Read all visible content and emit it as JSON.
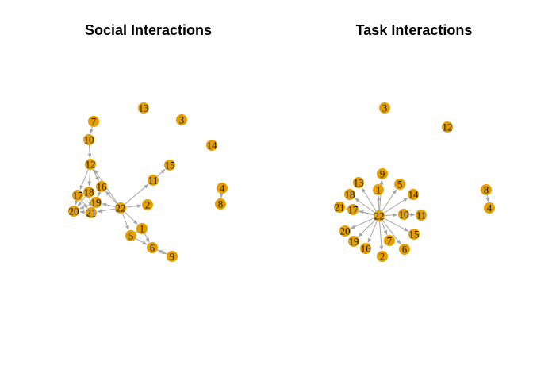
{
  "colors": {
    "node": "#E69F00",
    "edge": "#A6A6A6",
    "label": "#1a1a1a"
  },
  "graphs": [
    {
      "title": "Social Interactions",
      "nodes": [
        "1",
        "2",
        "3",
        "4",
        "5",
        "6",
        "7",
        "8",
        "9",
        "10",
        "11",
        "12",
        "13",
        "14",
        "15",
        "16",
        "17",
        "18",
        "19",
        "20",
        "21",
        "22"
      ],
      "edges": [
        [
          "22",
          "1"
        ],
        [
          "22",
          "2"
        ],
        [
          "22",
          "5"
        ],
        [
          "22",
          "11"
        ],
        [
          "22",
          "16"
        ],
        [
          "22",
          "19"
        ],
        [
          "22",
          "21"
        ],
        [
          "22",
          "12"
        ],
        [
          "1",
          "5"
        ],
        [
          "5",
          "1"
        ],
        [
          "1",
          "6"
        ],
        [
          "5",
          "6"
        ],
        [
          "6",
          "9"
        ],
        [
          "9",
          "6"
        ],
        [
          "11",
          "15"
        ],
        [
          "4",
          "8"
        ],
        [
          "7",
          "10"
        ],
        [
          "10",
          "12"
        ],
        [
          "12",
          "16"
        ],
        [
          "12",
          "18"
        ],
        [
          "12",
          "17"
        ],
        [
          "16",
          "19"
        ],
        [
          "16",
          "21"
        ],
        [
          "18",
          "20"
        ],
        [
          "18",
          "21"
        ],
        [
          "17",
          "20"
        ],
        [
          "19",
          "20"
        ],
        [
          "19",
          "21"
        ],
        [
          "21",
          "20"
        ],
        [
          "17",
          "21"
        ],
        [
          "18",
          "17"
        ],
        [
          "19",
          "18"
        ]
      ]
    },
    {
      "title": "Task Interactions",
      "nodes": [
        "1",
        "2",
        "3",
        "4",
        "5",
        "6",
        "7",
        "8",
        "9",
        "10",
        "11",
        "12",
        "13",
        "14",
        "15",
        "16",
        "17",
        "18",
        "19",
        "20",
        "21",
        "22"
      ],
      "edges": [
        [
          "22",
          "1"
        ],
        [
          "22",
          "2"
        ],
        [
          "22",
          "5"
        ],
        [
          "22",
          "6"
        ],
        [
          "22",
          "7"
        ],
        [
          "22",
          "9"
        ],
        [
          "22",
          "10"
        ],
        [
          "22",
          "13"
        ],
        [
          "22",
          "14"
        ],
        [
          "22",
          "15"
        ],
        [
          "22",
          "16"
        ],
        [
          "22",
          "17"
        ],
        [
          "22",
          "18"
        ],
        [
          "22",
          "19"
        ],
        [
          "22",
          "20"
        ],
        [
          "22",
          "21"
        ],
        [
          "10",
          "11"
        ],
        [
          "8",
          "4"
        ]
      ]
    }
  ]
}
